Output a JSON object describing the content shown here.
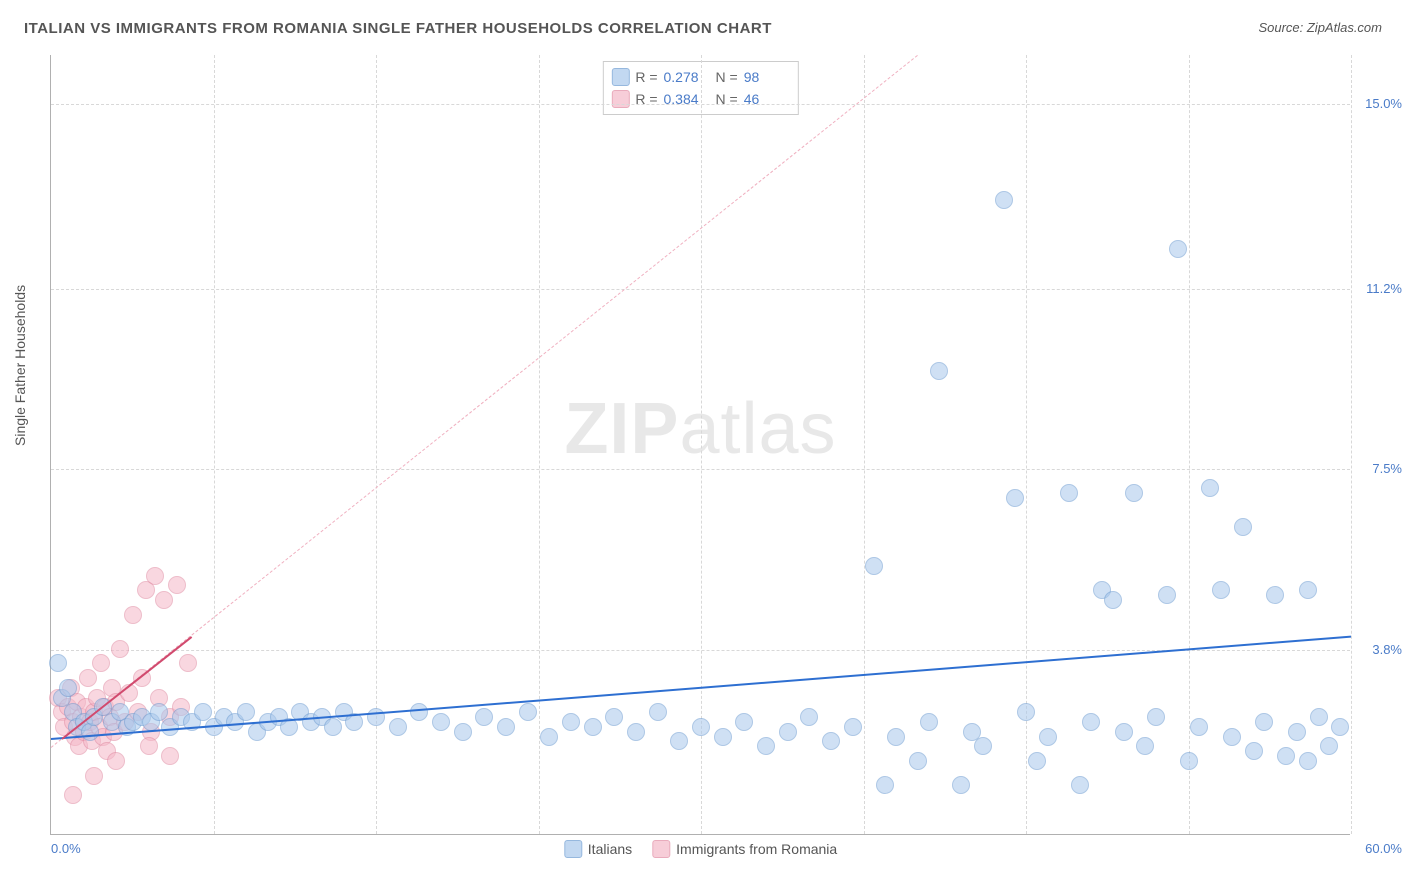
{
  "title": "ITALIAN VS IMMIGRANTS FROM ROMANIA SINGLE FATHER HOUSEHOLDS CORRELATION CHART",
  "source_prefix": "Source: ",
  "source_name": "ZipAtlas.com",
  "y_axis_title": "Single Father Households",
  "watermark_bold": "ZIP",
  "watermark_light": "atlas",
  "chart": {
    "type": "scatter",
    "xlim": [
      0,
      60
    ],
    "ylim": [
      0,
      16
    ],
    "background_color": "#ffffff",
    "grid_color": "#d8d8d8",
    "axis_color": "#b0b0b0",
    "tick_label_color": "#4a7bc8",
    "tick_fontsize": 13,
    "y_ticks": [
      3.8,
      7.5,
      11.2,
      15.0
    ],
    "y_tick_labels": [
      "3.8%",
      "7.5%",
      "11.2%",
      "15.0%"
    ],
    "x_ticks": [
      0,
      60
    ],
    "x_tick_labels": [
      "0.0%",
      "60.0%"
    ],
    "x_grid_positions": [
      7.5,
      15,
      22.5,
      30,
      37.5,
      45,
      52.5,
      60
    ],
    "marker_size": 18,
    "marker_border_width": 1,
    "series": [
      {
        "name": "Italians",
        "fill_color": "#a9c8ec",
        "border_color": "#6b9bd1",
        "fill_opacity": 0.55,
        "R": "0.278",
        "N": "98",
        "regression": {
          "x1": 0,
          "y1": 2.0,
          "x2": 60,
          "y2": 4.1,
          "color": "#2e6fd1",
          "width": 2,
          "dash": false
        },
        "points": [
          [
            0.3,
            3.5
          ],
          [
            0.5,
            2.8
          ],
          [
            0.8,
            3.0
          ],
          [
            1.0,
            2.5
          ],
          [
            1.2,
            2.2
          ],
          [
            1.5,
            2.3
          ],
          [
            1.8,
            2.1
          ],
          [
            2.0,
            2.4
          ],
          [
            2.4,
            2.6
          ],
          [
            2.8,
            2.3
          ],
          [
            3.2,
            2.5
          ],
          [
            3.5,
            2.2
          ],
          [
            3.8,
            2.3
          ],
          [
            4.2,
            2.4
          ],
          [
            4.6,
            2.3
          ],
          [
            5.0,
            2.5
          ],
          [
            5.5,
            2.2
          ],
          [
            6.0,
            2.4
          ],
          [
            6.5,
            2.3
          ],
          [
            7.0,
            2.5
          ],
          [
            7.5,
            2.2
          ],
          [
            8.0,
            2.4
          ],
          [
            8.5,
            2.3
          ],
          [
            9.0,
            2.5
          ],
          [
            9.5,
            2.1
          ],
          [
            10.0,
            2.3
          ],
          [
            10.5,
            2.4
          ],
          [
            11.0,
            2.2
          ],
          [
            11.5,
            2.5
          ],
          [
            12.0,
            2.3
          ],
          [
            12.5,
            2.4
          ],
          [
            13.0,
            2.2
          ],
          [
            13.5,
            2.5
          ],
          [
            14.0,
            2.3
          ],
          [
            15.0,
            2.4
          ],
          [
            16.0,
            2.2
          ],
          [
            17.0,
            2.5
          ],
          [
            18.0,
            2.3
          ],
          [
            19.0,
            2.1
          ],
          [
            20.0,
            2.4
          ],
          [
            21.0,
            2.2
          ],
          [
            22.0,
            2.5
          ],
          [
            23.0,
            2.0
          ],
          [
            24.0,
            2.3
          ],
          [
            25.0,
            2.2
          ],
          [
            26.0,
            2.4
          ],
          [
            27.0,
            2.1
          ],
          [
            28.0,
            2.5
          ],
          [
            29.0,
            1.9
          ],
          [
            30.0,
            2.2
          ],
          [
            31.0,
            2.0
          ],
          [
            32.0,
            2.3
          ],
          [
            33.0,
            1.8
          ],
          [
            34.0,
            2.1
          ],
          [
            35.0,
            2.4
          ],
          [
            36.0,
            1.9
          ],
          [
            37.0,
            2.2
          ],
          [
            38.0,
            5.5
          ],
          [
            38.5,
            1.0
          ],
          [
            39.0,
            2.0
          ],
          [
            40.0,
            1.5
          ],
          [
            40.5,
            2.3
          ],
          [
            41.0,
            9.5
          ],
          [
            42.0,
            1.0
          ],
          [
            42.5,
            2.1
          ],
          [
            43.0,
            1.8
          ],
          [
            44.0,
            13.0
          ],
          [
            44.5,
            6.9
          ],
          [
            45.0,
            2.5
          ],
          [
            45.5,
            1.5
          ],
          [
            46.0,
            2.0
          ],
          [
            47.0,
            7.0
          ],
          [
            47.5,
            1.0
          ],
          [
            48.0,
            2.3
          ],
          [
            48.5,
            5.0
          ],
          [
            49.0,
            4.8
          ],
          [
            49.5,
            2.1
          ],
          [
            50.0,
            7.0
          ],
          [
            50.5,
            1.8
          ],
          [
            51.0,
            2.4
          ],
          [
            51.5,
            4.9
          ],
          [
            52.0,
            12.0
          ],
          [
            52.5,
            1.5
          ],
          [
            53.0,
            2.2
          ],
          [
            53.5,
            7.1
          ],
          [
            54.0,
            5.0
          ],
          [
            54.5,
            2.0
          ],
          [
            55.0,
            6.3
          ],
          [
            55.5,
            1.7
          ],
          [
            56.0,
            2.3
          ],
          [
            56.5,
            4.9
          ],
          [
            57.0,
            1.6
          ],
          [
            57.5,
            2.1
          ],
          [
            58.0,
            5.0
          ],
          [
            58.5,
            2.4
          ],
          [
            59.0,
            1.8
          ],
          [
            59.5,
            2.2
          ],
          [
            58.0,
            1.5
          ]
        ]
      },
      {
        "name": "Immigrants from Romania",
        "fill_color": "#f5b8c8",
        "border_color": "#e088a0",
        "fill_opacity": 0.55,
        "R": "0.384",
        "N": "46",
        "regression_dashed": {
          "x1": 0,
          "y1": 1.8,
          "x2": 40,
          "y2": 16.0,
          "color": "#f0b0c0",
          "width": 1.5,
          "dash": true
        },
        "regression": {
          "x1": 0.5,
          "y1": 2.0,
          "x2": 6.5,
          "y2": 4.1,
          "color": "#d14a6e",
          "width": 2,
          "dash": false
        },
        "points": [
          [
            0.3,
            2.8
          ],
          [
            0.5,
            2.5
          ],
          [
            0.6,
            2.2
          ],
          [
            0.8,
            2.6
          ],
          [
            0.9,
            3.0
          ],
          [
            1.0,
            2.3
          ],
          [
            1.1,
            2.0
          ],
          [
            1.2,
            2.7
          ],
          [
            1.3,
            1.8
          ],
          [
            1.4,
            2.4
          ],
          [
            1.5,
            2.1
          ],
          [
            1.6,
            2.6
          ],
          [
            1.7,
            3.2
          ],
          [
            1.8,
            2.3
          ],
          [
            1.9,
            1.9
          ],
          [
            2.0,
            2.5
          ],
          [
            2.1,
            2.8
          ],
          [
            2.2,
            2.2
          ],
          [
            2.3,
            3.5
          ],
          [
            2.4,
            2.0
          ],
          [
            2.5,
            2.6
          ],
          [
            2.6,
            1.7
          ],
          [
            2.7,
            2.4
          ],
          [
            2.8,
            3.0
          ],
          [
            2.9,
            2.1
          ],
          [
            3.0,
            2.7
          ],
          [
            3.2,
            3.8
          ],
          [
            3.4,
            2.3
          ],
          [
            3.6,
            2.9
          ],
          [
            3.8,
            4.5
          ],
          [
            4.0,
            2.5
          ],
          [
            4.2,
            3.2
          ],
          [
            4.4,
            5.0
          ],
          [
            4.6,
            2.1
          ],
          [
            4.8,
            5.3
          ],
          [
            5.0,
            2.8
          ],
          [
            5.2,
            4.8
          ],
          [
            5.5,
            2.4
          ],
          [
            5.8,
            5.1
          ],
          [
            6.0,
            2.6
          ],
          [
            6.3,
            3.5
          ],
          [
            1.0,
            0.8
          ],
          [
            2.0,
            1.2
          ],
          [
            3.0,
            1.5
          ],
          [
            4.5,
            1.8
          ],
          [
            5.5,
            1.6
          ]
        ]
      }
    ]
  },
  "legend_top": {
    "r_label": "R =",
    "n_label": "N ="
  },
  "legend_bottom": {
    "items": [
      "Italians",
      "Immigrants from Romania"
    ]
  }
}
